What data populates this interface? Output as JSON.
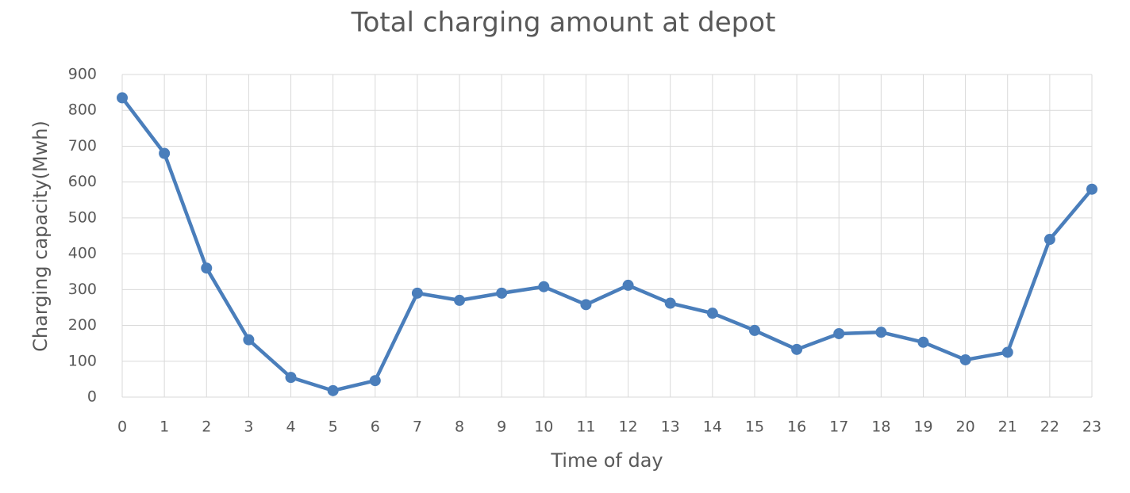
{
  "chart_data": {
    "type": "line",
    "title": "Total charging amount at depot",
    "x_label": "Time of day",
    "y_label": "Charging capacity(Mwh)",
    "x": [
      0,
      1,
      2,
      3,
      4,
      5,
      6,
      7,
      8,
      9,
      10,
      11,
      12,
      13,
      14,
      15,
      16,
      17,
      18,
      19,
      20,
      21,
      22,
      23
    ],
    "values": [
      835,
      680,
      360,
      160,
      55,
      18,
      46,
      290,
      270,
      290,
      308,
      258,
      312,
      262,
      234,
      186,
      133,
      177,
      181,
      153,
      104,
      125,
      440,
      580
    ],
    "color": "#4a7ebb",
    "xlim": [
      0,
      23
    ],
    "xticks": [
      0,
      1,
      2,
      3,
      4,
      5,
      6,
      7,
      8,
      9,
      10,
      11,
      12,
      13,
      14,
      15,
      16,
      17,
      18,
      19,
      20,
      21,
      22,
      23
    ],
    "ylim": [
      0,
      900
    ],
    "yticks": [
      0,
      100,
      200,
      300,
      400,
      500,
      600,
      700,
      800,
      900
    ],
    "grid": true
  }
}
